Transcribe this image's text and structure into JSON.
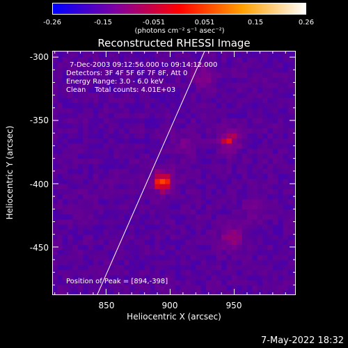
{
  "chart_data": {
    "type": "heatmap",
    "title": "Reconstructed RHESSI Image",
    "xlabel": "Heliocentric X (arcsec)",
    "ylabel": "Heliocentric Y (arcsec)",
    "xlim": [
      808,
      998
    ],
    "ylim": [
      -488,
      -295
    ],
    "x_ticks": [
      850,
      900,
      950
    ],
    "y_ticks": [
      -300,
      -350,
      -400,
      -450
    ],
    "colorbar": {
      "range": [
        -0.26,
        0.26
      ],
      "ticks": [
        "-0.26",
        "-0.15",
        "-0.051",
        "0.051",
        "0.15",
        "0.26"
      ],
      "units_text": "(photons cm⁻² s⁻¹ asec⁻²)",
      "colors": [
        "#0000ff",
        "#8000a0",
        "#ff0000",
        "#ffa000",
        "#ffffff"
      ]
    },
    "annotations": {
      "time": "7-Dec-2003 09:12:56.000 to 09:14:12.000",
      "detectors": "Detectors: 3F 4F 5F 6F 7F 8F, Att 0",
      "energy": "Energy Range: 3.0 - 6.0 keV",
      "clean": "Clean    Total counts: 4.01E+03",
      "peak": "Position of Peak = [894,-398]"
    },
    "limb_line": [
      [
        843,
        -488
      ],
      [
        927,
        -295
      ]
    ],
    "sources": [
      {
        "x": 894,
        "y": -398,
        "intensity": 0.26
      },
      {
        "x": 946,
        "y": -365,
        "intensity": 0.2
      },
      {
        "x": 948,
        "y": -443,
        "intensity": 0.15
      },
      {
        "x": 926,
        "y": -315,
        "intensity": 0.12
      },
      {
        "x": 912,
        "y": -370,
        "intensity": 0.1
      },
      {
        "x": 965,
        "y": -420,
        "intensity": 0.08
      }
    ]
  },
  "footer": {
    "date": "7-May-2022 18:32"
  }
}
